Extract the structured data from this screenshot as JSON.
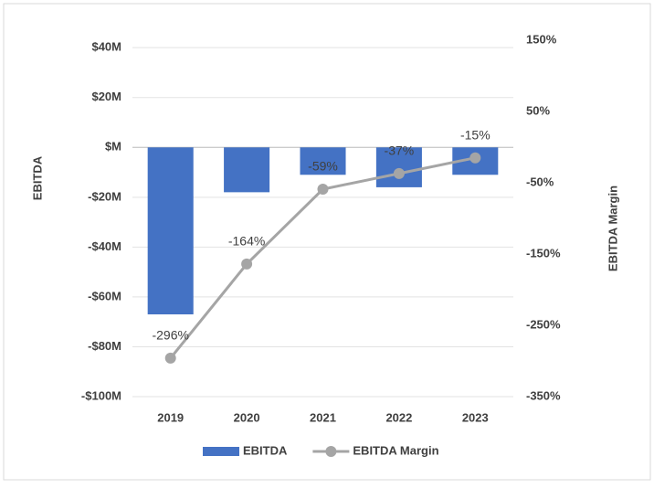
{
  "chart_data": {
    "type": "bar_line",
    "categories": [
      "2019",
      "2020",
      "2021",
      "2022",
      "2023"
    ],
    "y_label": "EBITDA",
    "y2_label": "EBITDA Margin",
    "series": [
      {
        "name": "EBITDA",
        "type": "bar",
        "color": "#4472c4",
        "values": [
          -67,
          -18,
          -11,
          -16,
          -11
        ]
      },
      {
        "name": "EBITDA Margin",
        "type": "line",
        "axis": "y2",
        "color": "#a5a5a5",
        "values": [
          -296,
          -164,
          -59,
          -37,
          -15
        ],
        "value_labels": [
          "-296%",
          "-164%",
          "-59%",
          "-37%",
          "-15%"
        ]
      }
    ],
    "ylim": [
      -100,
      43
    ],
    "yticks": [
      {
        "value": -100,
        "label": "-$100M"
      },
      {
        "value": -80,
        "label": "-$80M"
      },
      {
        "value": -60,
        "label": "-$60M"
      },
      {
        "value": -40,
        "label": "-$40M"
      },
      {
        "value": -20,
        "label": "-$20M"
      },
      {
        "value": 0,
        "label": "$M"
      },
      {
        "value": 20,
        "label": "$20M"
      },
      {
        "value": 40,
        "label": "$40M"
      }
    ],
    "y2lim": [
      -350,
      150
    ],
    "y2ticks": [
      {
        "value": -350,
        "label": "-350%"
      },
      {
        "value": -250,
        "label": "-250%"
      },
      {
        "value": -150,
        "label": "-150%"
      },
      {
        "value": -50,
        "label": "-50%"
      },
      {
        "value": 50,
        "label": "50%"
      },
      {
        "value": 150,
        "label": "150%"
      }
    ],
    "grid": true,
    "legend": "bottom"
  }
}
